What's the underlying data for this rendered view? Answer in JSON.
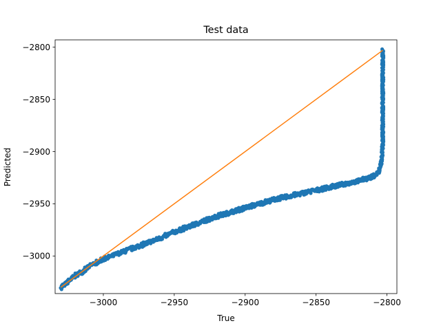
{
  "chart_data": {
    "type": "scatter",
    "title": "Test data",
    "xlabel": "True",
    "ylabel": "Predicted",
    "xlim": [
      -3034,
      -2793
    ],
    "ylim": [
      -3036,
      -2793
    ],
    "xticks": [
      -3000,
      -2950,
      -2900,
      -2850,
      -2800
    ],
    "xtick_labels": [
      "−3000",
      "−2950",
      "−2900",
      "−2850",
      "−2800"
    ],
    "yticks": [
      -2800,
      -2850,
      -2900,
      -2950,
      -3000
    ],
    "ytick_labels": [
      "−2800",
      "−2850",
      "−2900",
      "−2950",
      "−3000"
    ],
    "grid": false,
    "colors": {
      "points": "#1f77b4",
      "identity_line": "#ff7f0e"
    },
    "series": [
      {
        "kind": "scatter",
        "spread": 2,
        "points": [
          [
            -3030,
            -3030
          ],
          [
            -3025,
            -3025
          ],
          [
            -3020,
            -3019
          ],
          [
            -3015,
            -3015
          ],
          [
            -3010,
            -3010
          ],
          [
            -3000,
            -3003
          ],
          [
            -2990,
            -2998
          ],
          [
            -2980,
            -2993
          ],
          [
            -2970,
            -2988
          ],
          [
            -2960,
            -2983
          ],
          [
            -2950,
            -2977
          ],
          [
            -2940,
            -2972
          ],
          [
            -2930,
            -2967
          ],
          [
            -2920,
            -2962
          ],
          [
            -2910,
            -2958
          ],
          [
            -2900,
            -2954
          ],
          [
            -2890,
            -2950
          ],
          [
            -2880,
            -2946
          ],
          [
            -2870,
            -2943
          ],
          [
            -2860,
            -2940
          ],
          [
            -2850,
            -2937
          ],
          [
            -2840,
            -2934
          ],
          [
            -2830,
            -2931
          ],
          [
            -2820,
            -2928
          ],
          [
            -2810,
            -2924
          ],
          [
            -2806,
            -2920
          ],
          [
            -2804,
            -2910
          ],
          [
            -2803,
            -2895
          ],
          [
            -2803,
            -2875
          ],
          [
            -2803,
            -2850
          ],
          [
            -2803,
            -2825
          ],
          [
            -2803,
            -2803
          ]
        ]
      },
      {
        "kind": "line",
        "points": [
          [
            -3030,
            -3030
          ],
          [
            -2803,
            -2803
          ]
        ]
      }
    ]
  }
}
